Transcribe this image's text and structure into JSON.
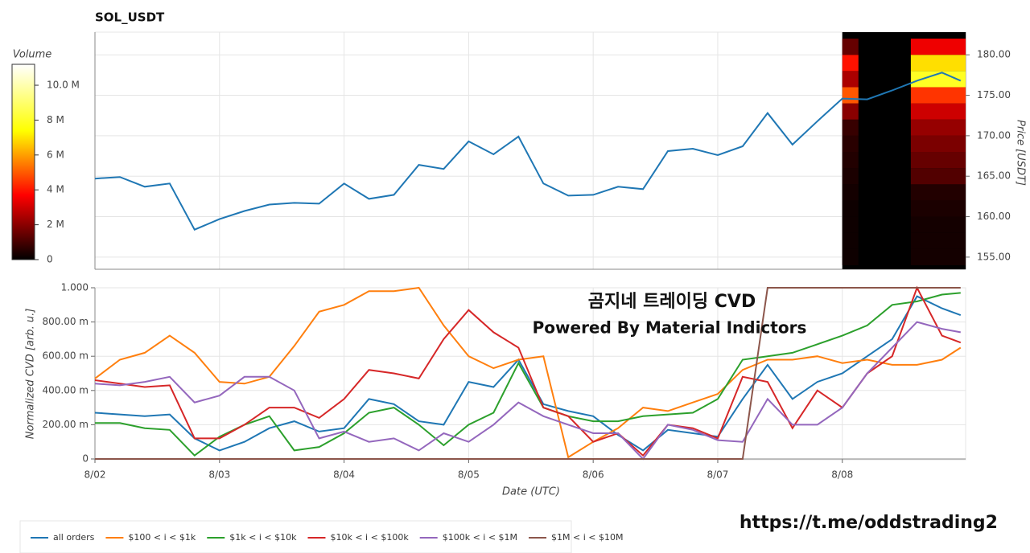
{
  "chart_data": [
    {
      "type": "line",
      "title": "SOL_USDT",
      "y_label": "Price [USDT]",
      "y_axis_side": "right",
      "grid": true,
      "x": [
        0,
        0.2,
        0.4,
        0.6,
        0.8,
        1.0,
        1.2,
        1.4,
        1.6,
        1.8,
        2.0,
        2.2,
        2.4,
        2.6,
        2.8,
        3.0,
        3.2,
        3.4,
        3.6,
        3.8,
        4.0,
        4.2,
        4.4,
        4.6,
        4.8,
        5.0,
        5.2,
        5.4,
        5.6,
        5.8,
        6.0,
        6.2,
        6.4,
        6.6,
        6.8,
        6.95
      ],
      "series": [
        {
          "name": "SOL_USDT",
          "color": "#1f77b4",
          "values": [
            164.7,
            164.9,
            163.7,
            164.1,
            158.4,
            159.7,
            160.7,
            161.5,
            161.7,
            161.6,
            164.1,
            162.2,
            162.7,
            166.4,
            165.9,
            169.3,
            167.7,
            169.9,
            164.1,
            162.6,
            162.7,
            163.7,
            163.4,
            168.1,
            168.4,
            167.6,
            168.7,
            172.8,
            168.9,
            171.8,
            174.6,
            174.5,
            175.6,
            176.8,
            177.8,
            176.8
          ]
        }
      ],
      "xlim": [
        0,
        6.99
      ],
      "xticks": [
        0,
        1,
        2,
        3,
        4,
        5,
        6
      ],
      "ylim": [
        153.5,
        182.8
      ],
      "yticks": [
        {
          "value": 155,
          "label": "155.00"
        },
        {
          "value": 160,
          "label": "160.00"
        },
        {
          "value": 165,
          "label": "165.00"
        },
        {
          "value": 170,
          "label": "170.00"
        },
        {
          "value": 175,
          "label": "175.00"
        },
        {
          "value": 180,
          "label": "180.00"
        }
      ],
      "heatmap": {
        "x_edges": [
          6.0,
          6.13,
          6.55,
          6.99
        ],
        "y_edges": [
          154,
          156,
          158,
          160,
          162,
          164,
          166,
          168,
          170,
          172,
          174,
          176,
          178,
          180,
          182
        ],
        "values": [
          [
            200000,
            200000,
            200000,
            200000,
            300000,
            400000,
            500000,
            600000,
            800000,
            2000000,
            5000000,
            2500000,
            4000000,
            1500000
          ],
          [
            0,
            0,
            0,
            0,
            0,
            0,
            0,
            0,
            0,
            0,
            0,
            0,
            0,
            0
          ],
          [
            300000,
            300000,
            300000,
            400000,
            500000,
            1200000,
            1500000,
            1800000,
            2200000,
            3000000,
            4500000,
            8000000,
            7000000,
            3500000
          ]
        ]
      },
      "colorbar": {
        "title": "Volume",
        "lim": [
          0,
          11200000
        ],
        "ticks": [
          0,
          {
            "value": 2000000,
            "label": "2 M"
          },
          {
            "value": 4000000,
            "label": "4 M"
          },
          {
            "value": 6000000,
            "label": "6 M"
          },
          {
            "value": 8000000,
            "label": "8 M"
          },
          {
            "value": 10000000,
            "label": "10.0 M"
          }
        ]
      }
    },
    {
      "type": "line",
      "x_label": "Date (UTC)",
      "y_label": "Normalized CVD [arb. u.]",
      "grid": true,
      "legend": "bottom-left",
      "annotations": [
        "곰지네 트레이딩 CVD",
        "Powered By Material Indictors"
      ],
      "x": [
        0,
        0.2,
        0.4,
        0.6,
        0.8,
        1.0,
        1.2,
        1.4,
        1.6,
        1.8,
        2.0,
        2.2,
        2.4,
        2.6,
        2.8,
        3.0,
        3.2,
        3.4,
        3.6,
        3.8,
        4.0,
        4.2,
        4.4,
        4.6,
        4.8,
        5.0,
        5.2,
        5.4,
        5.6,
        5.8,
        6.0,
        6.2,
        6.4,
        6.6,
        6.8,
        6.95
      ],
      "xlim": [
        0,
        6.99
      ],
      "xticks": [
        {
          "value": 0,
          "label": "8/02"
        },
        {
          "value": 1,
          "label": "8/03"
        },
        {
          "value": 2,
          "label": "8/04"
        },
        {
          "value": 3,
          "label": "8/05"
        },
        {
          "value": 4,
          "label": "8/06"
        },
        {
          "value": 5,
          "label": "8/07"
        },
        {
          "value": 6,
          "label": "8/08"
        }
      ],
      "ylim": [
        0,
        1
      ],
      "yticks": [
        0,
        {
          "value": 0.2,
          "label": "200.00 m"
        },
        {
          "value": 0.4,
          "label": "400.00 m"
        },
        {
          "value": 0.6,
          "label": "600.00 m"
        },
        {
          "value": 0.8,
          "label": "800.00 m"
        },
        {
          "value": 1,
          "label": "1.000"
        }
      ],
      "series": [
        {
          "name": "all orders",
          "color": "#1f77b4",
          "values": [
            0.27,
            0.26,
            0.25,
            0.26,
            0.12,
            0.05,
            0.1,
            0.18,
            0.22,
            0.16,
            0.18,
            0.35,
            0.32,
            0.22,
            0.2,
            0.45,
            0.42,
            0.58,
            0.32,
            0.28,
            0.25,
            0.14,
            0.05,
            0.17,
            0.15,
            0.13,
            0.35,
            0.55,
            0.35,
            0.45,
            0.5,
            0.6,
            0.7,
            0.95,
            0.88,
            0.84
          ]
        },
        {
          "name": "$100 < i < $1k",
          "color": "#ff7f0e",
          "values": [
            0.47,
            0.58,
            0.62,
            0.72,
            0.62,
            0.45,
            0.44,
            0.48,
            0.66,
            0.86,
            0.9,
            0.98,
            0.98,
            1.0,
            0.78,
            0.6,
            0.53,
            0.58,
            0.6,
            0.01,
            0.1,
            0.18,
            0.3,
            0.28,
            0.33,
            0.38,
            0.52,
            0.58,
            0.58,
            0.6,
            0.56,
            0.58,
            0.55,
            0.55,
            0.58,
            0.65
          ]
        },
        {
          "name": "$1k < i < $10k",
          "color": "#2ca02c",
          "values": [
            0.21,
            0.21,
            0.18,
            0.17,
            0.02,
            0.13,
            0.2,
            0.25,
            0.05,
            0.07,
            0.15,
            0.27,
            0.3,
            0.2,
            0.08,
            0.2,
            0.27,
            0.56,
            0.3,
            0.25,
            0.22,
            0.22,
            0.25,
            0.26,
            0.27,
            0.35,
            0.58,
            0.6,
            0.62,
            0.67,
            0.72,
            0.78,
            0.9,
            0.92,
            0.96,
            0.97
          ]
        },
        {
          "name": "$10k < i < $100k",
          "color": "#d62728",
          "values": [
            0.46,
            0.44,
            0.42,
            0.43,
            0.12,
            0.12,
            0.2,
            0.3,
            0.3,
            0.24,
            0.35,
            0.52,
            0.5,
            0.47,
            0.7,
            0.87,
            0.74,
            0.65,
            0.3,
            0.25,
            0.1,
            0.15,
            0.02,
            0.2,
            0.18,
            0.12,
            0.48,
            0.45,
            0.18,
            0.4,
            0.3,
            0.5,
            0.6,
            1.0,
            0.72,
            0.68
          ]
        },
        {
          "name": "$100k < i < $1M",
          "color": "#9467bd",
          "values": [
            0.44,
            0.43,
            0.45,
            0.48,
            0.33,
            0.37,
            0.48,
            0.48,
            0.4,
            0.12,
            0.16,
            0.1,
            0.12,
            0.05,
            0.15,
            0.1,
            0.2,
            0.33,
            0.25,
            0.2,
            0.15,
            0.15,
            0,
            0.2,
            0.17,
            0.11,
            0.1,
            0.35,
            0.2,
            0.2,
            0.3,
            0.5,
            0.65,
            0.8,
            0.76,
            0.74
          ]
        },
        {
          "name": "$1M < i < $10M",
          "color": "#8c564b",
          "values": [
            0,
            0,
            0,
            0,
            0,
            0,
            0,
            0,
            0,
            0,
            0,
            0,
            0,
            0,
            0,
            0,
            0,
            0,
            0,
            0,
            0,
            0,
            0,
            0,
            0,
            0,
            0,
            1.0,
            1.0,
            1.0,
            1.0,
            1.0,
            1.0,
            1.0,
            1.0,
            1.0
          ]
        }
      ]
    }
  ],
  "footer_link": "https://t.me/oddstrading2"
}
